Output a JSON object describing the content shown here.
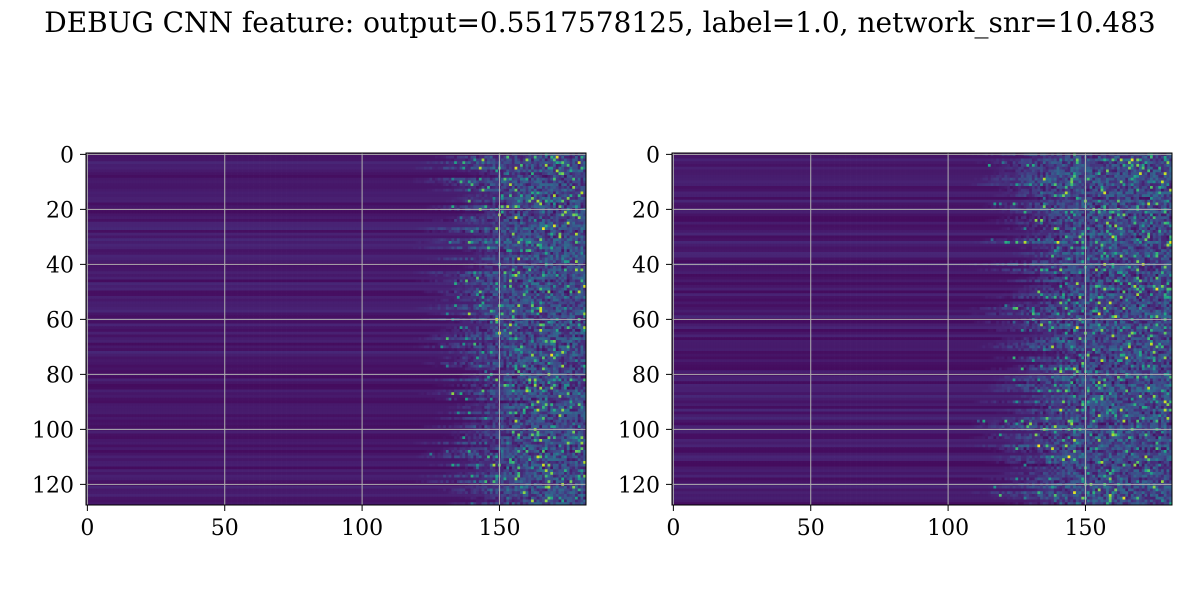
{
  "title": "DEBUG CNN feature: output=0.5517578125, label=1.0, network_snr=10.483",
  "chart_data": [
    {
      "type": "heatmap",
      "colormap": "viridis",
      "rows": 128,
      "cols": 182,
      "xlim": [
        -0.5,
        181.5
      ],
      "ylim": [
        127.5,
        -0.5
      ],
      "x_ticks": [
        0,
        50,
        100,
        150
      ],
      "y_ticks": [
        0,
        20,
        40,
        60,
        80,
        100,
        120
      ],
      "grid": true,
      "signal_onset_col": 128,
      "seed": 7
    },
    {
      "type": "heatmap",
      "colormap": "viridis",
      "rows": 128,
      "cols": 182,
      "xlim": [
        -0.5,
        181.5
      ],
      "ylim": [
        127.5,
        -0.5
      ],
      "x_ticks": [
        0,
        50,
        100,
        150
      ],
      "y_ticks": [
        0,
        20,
        40,
        60,
        80,
        100,
        120
      ],
      "grid": true,
      "signal_onset_col": 118,
      "seed": 19
    }
  ]
}
